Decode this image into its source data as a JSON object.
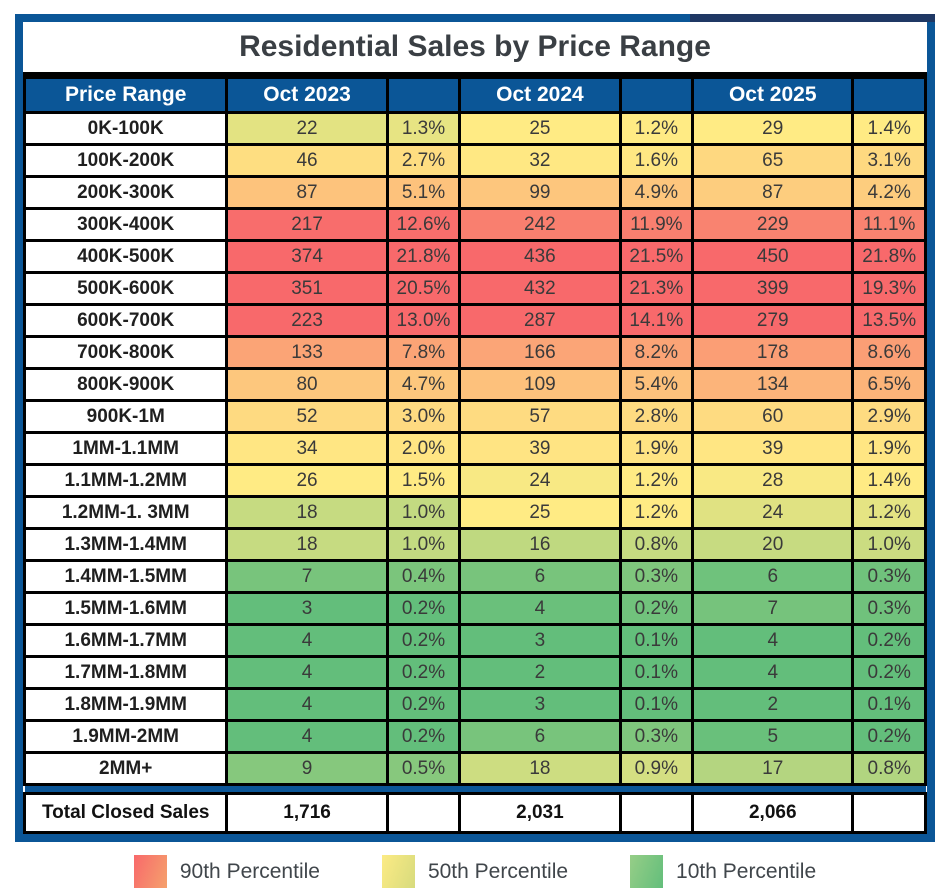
{
  "title": "Residential Sales by Price Range",
  "table": {
    "headers": [
      "Price Range",
      "Oct 2023",
      "",
      "Oct 2024",
      "",
      "Oct 2025",
      ""
    ],
    "rows": [
      {
        "range": "0K-100K",
        "cells": [
          "22",
          "1.3%",
          "25",
          "1.2%",
          "29",
          "1.4%"
        ]
      },
      {
        "range": "100K-200K",
        "cells": [
          "46",
          "2.7%",
          "32",
          "1.6%",
          "65",
          "3.1%"
        ]
      },
      {
        "range": "200K-300K",
        "cells": [
          "87",
          "5.1%",
          "99",
          "4.9%",
          "87",
          "4.2%"
        ]
      },
      {
        "range": "300K-400K",
        "cells": [
          "217",
          "12.6%",
          "242",
          "11.9%",
          "229",
          "11.1%"
        ]
      },
      {
        "range": "400K-500K",
        "cells": [
          "374",
          "21.8%",
          "436",
          "21.5%",
          "450",
          "21.8%"
        ]
      },
      {
        "range": "500K-600K",
        "cells": [
          "351",
          "20.5%",
          "432",
          "21.3%",
          "399",
          "19.3%"
        ]
      },
      {
        "range": "600K-700K",
        "cells": [
          "223",
          "13.0%",
          "287",
          "14.1%",
          "279",
          "13.5%"
        ]
      },
      {
        "range": "700K-800K",
        "cells": [
          "133",
          "7.8%",
          "166",
          "8.2%",
          "178",
          "8.6%"
        ]
      },
      {
        "range": "800K-900K",
        "cells": [
          "80",
          "4.7%",
          "109",
          "5.4%",
          "134",
          "6.5%"
        ]
      },
      {
        "range": "900K-1M",
        "cells": [
          "52",
          "3.0%",
          "57",
          "2.8%",
          "60",
          "2.9%"
        ]
      },
      {
        "range": "1MM-1.1MM",
        "cells": [
          "34",
          "2.0%",
          "39",
          "1.9%",
          "39",
          "1.9%"
        ]
      },
      {
        "range": "1.1MM-1.2MM",
        "cells": [
          "26",
          "1.5%",
          "24",
          "1.2%",
          "28",
          "1.4%"
        ]
      },
      {
        "range": "1.2MM-1. 3MM",
        "cells": [
          "18",
          "1.0%",
          "25",
          "1.2%",
          "24",
          "1.2%"
        ]
      },
      {
        "range": "1.3MM-1.4MM",
        "cells": [
          "18",
          "1.0%",
          "16",
          "0.8%",
          "20",
          "1.0%"
        ]
      },
      {
        "range": "1.4MM-1.5MM",
        "cells": [
          "7",
          "0.4%",
          "6",
          "0.3%",
          "6",
          "0.3%"
        ]
      },
      {
        "range": "1.5MM-1.6MM",
        "cells": [
          "3",
          "0.2%",
          "4",
          "0.2%",
          "7",
          "0.3%"
        ]
      },
      {
        "range": "1.6MM-1.7MM",
        "cells": [
          "4",
          "0.2%",
          "3",
          "0.1%",
          "4",
          "0.2%"
        ]
      },
      {
        "range": "1.7MM-1.8MM",
        "cells": [
          "4",
          "0.2%",
          "2",
          "0.1%",
          "4",
          "0.2%"
        ]
      },
      {
        "range": "1.8MM-1.9MM",
        "cells": [
          "4",
          "0.2%",
          "3",
          "0.1%",
          "2",
          "0.1%"
        ]
      },
      {
        "range": "1.9MM-2MM",
        "cells": [
          "4",
          "0.2%",
          "6",
          "0.3%",
          "5",
          "0.2%"
        ]
      },
      {
        "range": "2MM+",
        "cells": [
          "9",
          "0.5%",
          "18",
          "0.9%",
          "17",
          "0.8%"
        ]
      }
    ],
    "totals": {
      "label": "Total Closed Sales",
      "values": [
        "1,716",
        "",
        "2,031",
        "",
        "2,066",
        ""
      ]
    }
  },
  "legend": [
    {
      "label": "90th Percentile",
      "color": "#F8696B",
      "gradient_to": "#F5A16C",
      "swatch_class": "red"
    },
    {
      "label": "50th Percentile",
      "color": "#FFEB84",
      "gradient_to": "#D7DB7D",
      "swatch_class": "yellow"
    },
    {
      "label": "10th Percentile",
      "color": "#63BE7B",
      "gradient_from": "#96CE87",
      "swatch_class": "green"
    }
  ],
  "colors": {
    "header_blue": "#0B5697",
    "frame_blue": "#0B5697",
    "navy_accent": "#1F3864",
    "grid_black": "#000000",
    "title_text": "#3A3F44",
    "cell_text": "#3A3A3A",
    "scale_green": "#63BE7B",
    "scale_yellow": "#FFEB84",
    "scale_red": "#F8696B"
  },
  "chart_data": {
    "type": "heatmap",
    "title": "Residential Sales by Price Range",
    "categories": [
      "0K-100K",
      "100K-200K",
      "200K-300K",
      "300K-400K",
      "400K-500K",
      "500K-600K",
      "600K-700K",
      "700K-800K",
      "800K-900K",
      "900K-1M",
      "1MM-1.1MM",
      "1.1MM-1.2MM",
      "1.2MM-1. 3MM",
      "1.3MM-1.4MM",
      "1.4MM-1.5MM",
      "1.5MM-1.6MM",
      "1.6MM-1.7MM",
      "1.7MM-1.8MM",
      "1.8MM-1.9MM",
      "1.9MM-2MM",
      "2MM+"
    ],
    "series": [
      {
        "name": "Oct 2023",
        "counts": [
          22,
          46,
          87,
          217,
          374,
          351,
          223,
          133,
          80,
          52,
          34,
          26,
          18,
          18,
          7,
          3,
          4,
          4,
          4,
          4,
          9
        ],
        "percents": [
          1.3,
          2.7,
          5.1,
          12.6,
          21.8,
          20.5,
          13.0,
          7.8,
          4.7,
          3.0,
          2.0,
          1.5,
          1.0,
          1.0,
          0.4,
          0.2,
          0.2,
          0.2,
          0.2,
          0.2,
          0.5
        ],
        "total": 1716
      },
      {
        "name": "Oct 2024",
        "counts": [
          25,
          32,
          99,
          242,
          436,
          432,
          287,
          166,
          109,
          57,
          39,
          24,
          25,
          16,
          6,
          4,
          3,
          2,
          3,
          6,
          18
        ],
        "percents": [
          1.2,
          1.6,
          4.9,
          11.9,
          21.5,
          21.3,
          14.1,
          8.2,
          5.4,
          2.8,
          1.9,
          1.2,
          1.2,
          0.8,
          0.3,
          0.2,
          0.1,
          0.1,
          0.1,
          0.3,
          0.9
        ],
        "total": 2031
      },
      {
        "name": "Oct 2025",
        "counts": [
          29,
          65,
          87,
          229,
          450,
          399,
          279,
          178,
          134,
          60,
          39,
          28,
          24,
          20,
          6,
          7,
          4,
          4,
          2,
          5,
          17
        ],
        "percents": [
          1.4,
          3.1,
          4.2,
          11.1,
          21.8,
          19.3,
          13.5,
          8.6,
          6.5,
          2.9,
          1.9,
          1.4,
          1.2,
          1.0,
          0.3,
          0.3,
          0.2,
          0.2,
          0.1,
          0.2,
          0.8
        ],
        "total": 2066
      }
    ],
    "color_scale": {
      "anchor_percentiles": [
        10,
        50,
        90
      ],
      "anchor_colors": [
        "#63BE7B",
        "#FFEB84",
        "#F8696B"
      ],
      "applied": "per-column",
      "legend_position": "bottom"
    },
    "grid": true
  }
}
